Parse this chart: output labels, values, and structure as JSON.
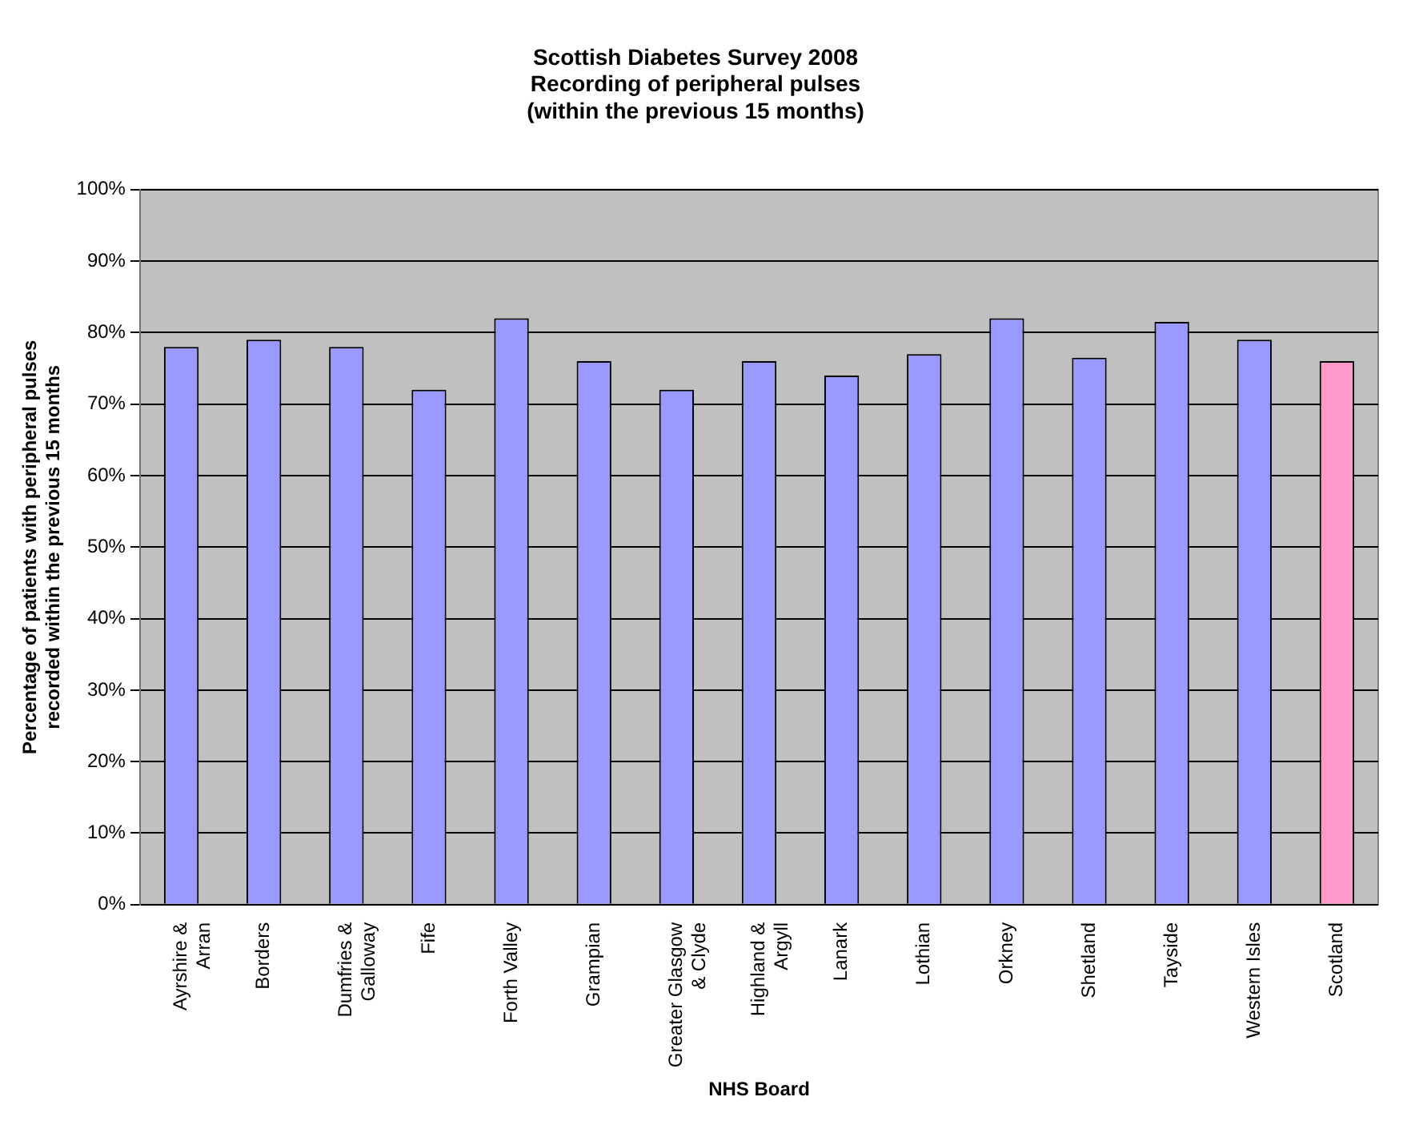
{
  "chart_data": {
    "type": "bar",
    "title": "Scottish Diabetes Survey 2008\nRecording of peripheral pulses\n(within the previous 15 months)",
    "xlabel": "NHS Board",
    "ylabel": "Percentage of patients with peripheral pulses\nrecorded within the previous 15 months",
    "categories": [
      "Ayrshire & Arran",
      "Borders",
      "Dumfries & Galloway",
      "Fife",
      "Forth Valley",
      "Grampian",
      "Greater Glasgow & Clyde",
      "Highland & Argyll",
      "Lanark",
      "Lothian",
      "Orkney",
      "Shetland",
      "Tayside",
      "Western Isles",
      "Scotland"
    ],
    "values": [
      78,
      79,
      78,
      72,
      82,
      76,
      72,
      76,
      74,
      77,
      82,
      76.5,
      81.5,
      79,
      76
    ],
    "colors": [
      "#9999ff",
      "#9999ff",
      "#9999ff",
      "#9999ff",
      "#9999ff",
      "#9999ff",
      "#9999ff",
      "#9999ff",
      "#9999ff",
      "#9999ff",
      "#9999ff",
      "#9999ff",
      "#9999ff",
      "#9999ff",
      "#ff99cc"
    ],
    "ylim": [
      0,
      100
    ],
    "yticks": [
      {
        "value": 0,
        "label": "0%"
      },
      {
        "value": 10,
        "label": "10%"
      },
      {
        "value": 20,
        "label": "20%"
      },
      {
        "value": 30,
        "label": "30%"
      },
      {
        "value": 40,
        "label": "40%"
      },
      {
        "value": 50,
        "label": "50%"
      },
      {
        "value": 60,
        "label": "60%"
      },
      {
        "value": 70,
        "label": "70%"
      },
      {
        "value": 80,
        "label": "80%"
      },
      {
        "value": 90,
        "label": "90%"
      },
      {
        "value": 100,
        "label": "100%"
      }
    ],
    "grid": "y",
    "legend": false
  }
}
